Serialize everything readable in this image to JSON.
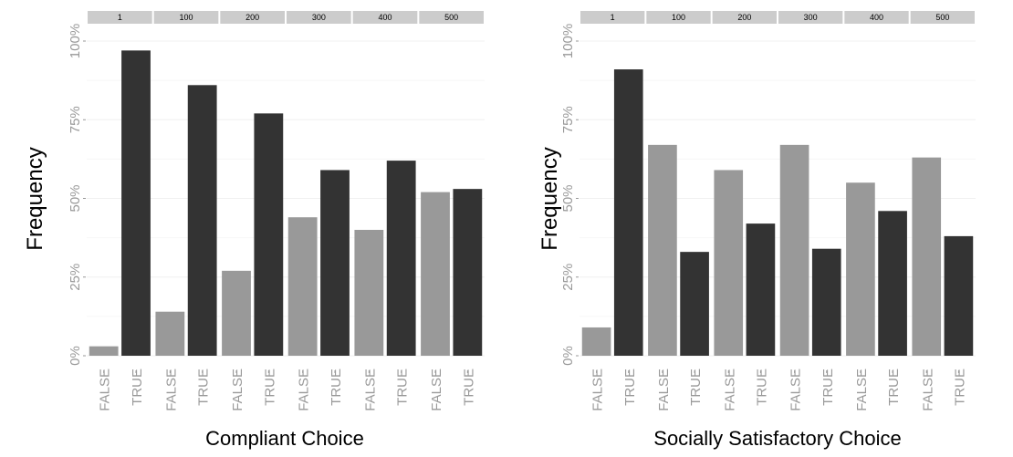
{
  "chart_data": [
    {
      "type": "bar",
      "facets": [
        "1",
        "100",
        "200",
        "300",
        "400",
        "500"
      ],
      "categories": [
        "FALSE",
        "TRUE"
      ],
      "values": [
        [
          3,
          97
        ],
        [
          14,
          86
        ],
        [
          27,
          77
        ],
        [
          44,
          59
        ],
        [
          40,
          62
        ],
        [
          52,
          53
        ]
      ],
      "bar_colors": {
        "FALSE": "#999999",
        "TRUE": "#333333"
      },
      "xlabel": "Compliant Choice",
      "ylabel": "Frequency",
      "ylim": [
        0,
        100
      ],
      "y_ticks": [
        "0%",
        "25%",
        "50%",
        "75%",
        "100%"
      ],
      "grid": true
    },
    {
      "type": "bar",
      "facets": [
        "1",
        "100",
        "200",
        "300",
        "400",
        "500"
      ],
      "categories": [
        "FALSE",
        "TRUE"
      ],
      "values": [
        [
          9,
          91
        ],
        [
          67,
          33
        ],
        [
          59,
          42
        ],
        [
          67,
          34
        ],
        [
          55,
          46
        ],
        [
          63,
          38
        ]
      ],
      "bar_colors": {
        "FALSE": "#999999",
        "TRUE": "#333333"
      },
      "xlabel": "Socially Satisfactory Choice",
      "ylabel": "Frequency",
      "ylim": [
        0,
        100
      ],
      "y_ticks": [
        "0%",
        "25%",
        "50%",
        "75%",
        "100%"
      ],
      "grid": true
    }
  ]
}
